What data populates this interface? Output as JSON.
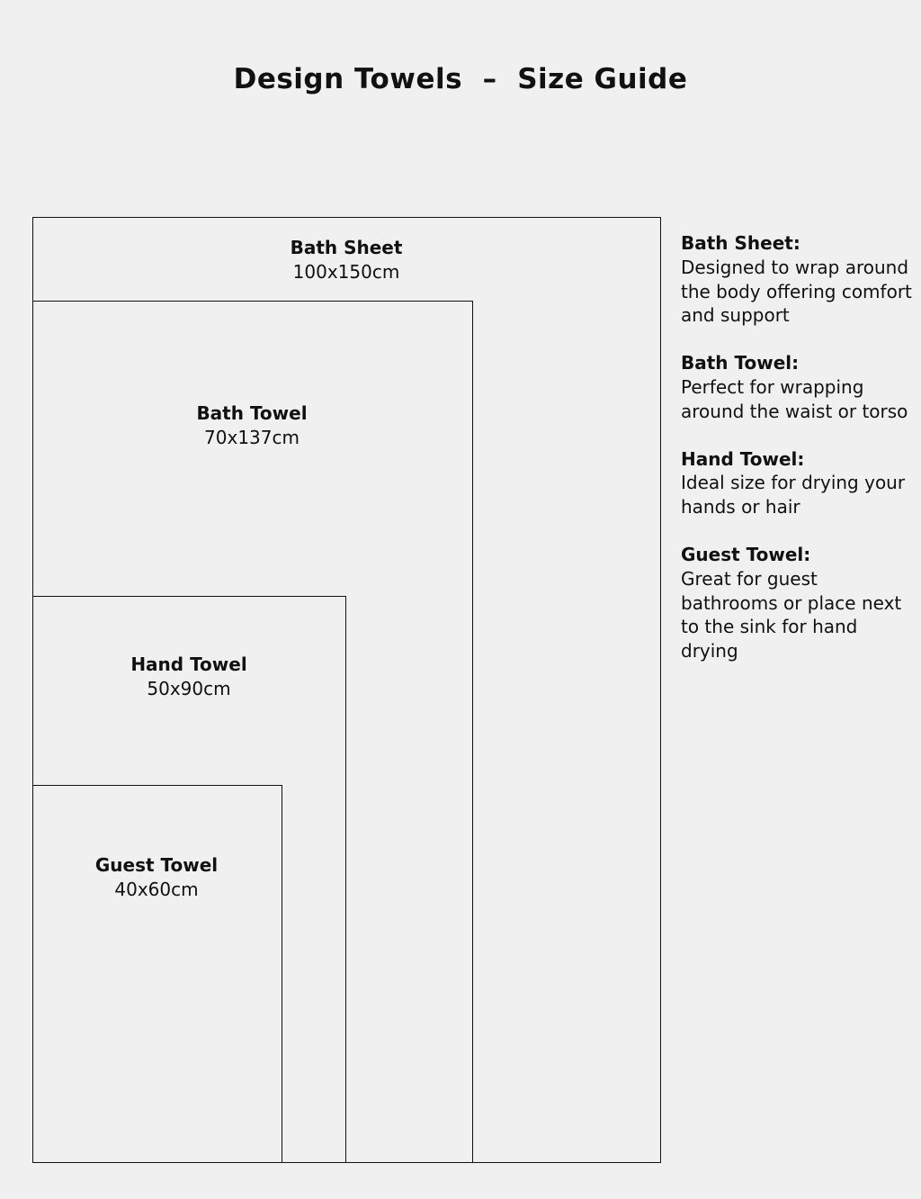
{
  "title": "Design Towels  –  Size Guide",
  "towels": [
    {
      "name": "Bath Sheet",
      "size": "100x150cm",
      "desc_title": "Bath Sheet:",
      "desc": "Designed to wrap around the body offering comfort and support"
    },
    {
      "name": "Bath Towel",
      "size": "70x137cm",
      "desc_title": "Bath Towel:",
      "desc": "Perfect for wrapping around the waist or torso"
    },
    {
      "name": "Hand Towel",
      "size": "50x90cm",
      "desc_title": "Hand Towel:",
      "desc": "Ideal size for drying your hands or hair"
    },
    {
      "name": "Guest Towel",
      "size": "40x60cm",
      "desc_title": "Guest Towel:",
      "desc": "Great for guest bathrooms or place next to the sink for hand drying"
    }
  ],
  "colors": {
    "background": "#f0f0f0",
    "line": "#111111"
  }
}
